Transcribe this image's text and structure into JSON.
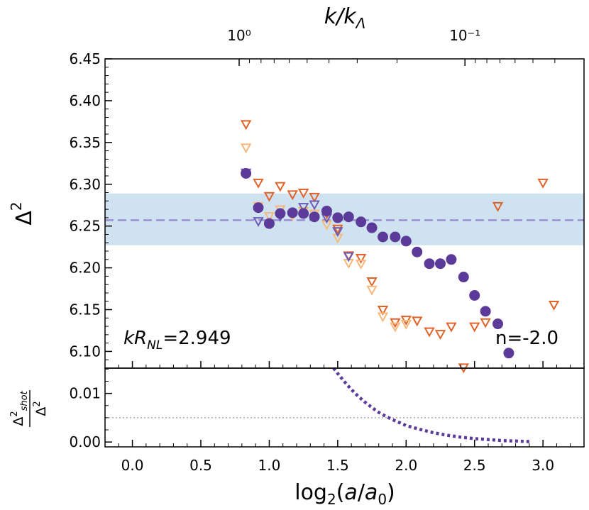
{
  "chart_data": [
    {
      "type": "scatter",
      "title": "",
      "top_axis_label": "k/kΛ",
      "top_ticks": [
        {
          "value": 1,
          "label": "10⁰"
        },
        {
          "value": 0.1,
          "label": "10⁻¹"
        }
      ],
      "ylabel": "Δ²",
      "xlim": [
        -0.2,
        3.3
      ],
      "ylim": [
        6.08,
        6.45
      ],
      "yticks": [
        "6.10",
        "6.15",
        "6.20",
        "6.25",
        "6.30",
        "6.35",
        "6.40",
        "6.45"
      ],
      "band": {
        "low": 6.227,
        "high": 6.289,
        "color": "#cfe2f0"
      },
      "mean_line": {
        "value": 6.257,
        "color": "#9b8fd4"
      },
      "annotations": {
        "left": "kR_NL=2.949",
        "right": "n=-2.0"
      },
      "series": [
        {
          "name": "main",
          "marker": "circle",
          "color": "#5b3a99",
          "points": [
            [
              0.83,
              6.313
            ],
            [
              0.92,
              6.272
            ],
            [
              1.0,
              6.253
            ],
            [
              1.08,
              6.265
            ],
            [
              1.17,
              6.266
            ],
            [
              1.25,
              6.265
            ],
            [
              1.33,
              6.261
            ],
            [
              1.42,
              6.268
            ],
            [
              1.5,
              6.26
            ],
            [
              1.58,
              6.261
            ],
            [
              1.67,
              6.255
            ],
            [
              1.75,
              6.248
            ],
            [
              1.83,
              6.237
            ],
            [
              1.92,
              6.237
            ],
            [
              2.0,
              6.232
            ],
            [
              2.08,
              6.219
            ],
            [
              2.17,
              6.205
            ],
            [
              2.25,
              6.205
            ],
            [
              2.33,
              6.21
            ],
            [
              2.42,
              6.189
            ],
            [
              2.5,
              6.167
            ],
            [
              2.58,
              6.148
            ],
            [
              2.67,
              6.133
            ],
            [
              2.75,
              6.098
            ]
          ]
        },
        {
          "name": "triangles-dark-orange",
          "marker": "triangle-down",
          "color": "#e0632a",
          "points": [
            [
              0.83,
              6.372
            ],
            [
              0.92,
              6.302
            ],
            [
              1.0,
              6.286
            ],
            [
              1.08,
              6.298
            ],
            [
              1.17,
              6.288
            ],
            [
              1.25,
              6.29
            ],
            [
              1.33,
              6.285
            ],
            [
              1.42,
              6.265
            ],
            [
              1.5,
              6.247
            ],
            [
              1.58,
              6.215
            ],
            [
              1.67,
              6.212
            ],
            [
              1.75,
              6.184
            ],
            [
              1.83,
              6.15
            ],
            [
              1.92,
              6.135
            ],
            [
              2.0,
              6.138
            ],
            [
              2.08,
              6.137
            ],
            [
              2.17,
              6.124
            ],
            [
              2.25,
              6.121
            ],
            [
              2.33,
              6.13
            ],
            [
              2.42,
              6.081
            ],
            [
              2.5,
              6.13
            ],
            [
              2.58,
              6.135
            ],
            [
              2.67,
              6.274
            ],
            [
              3.0,
              6.302
            ],
            [
              3.08,
              6.156
            ]
          ]
        },
        {
          "name": "triangles-light-orange",
          "marker": "triangle-down",
          "color": "#f7b87a",
          "points": [
            [
              0.83,
              6.344
            ],
            [
              0.92,
              6.274
            ],
            [
              1.0,
              6.262
            ],
            [
              1.08,
              6.27
            ],
            [
              1.17,
              6.263
            ],
            [
              1.25,
              6.268
            ],
            [
              1.33,
              6.265
            ],
            [
              1.42,
              6.252
            ],
            [
              1.5,
              6.236
            ],
            [
              1.58,
              6.206
            ],
            [
              1.67,
              6.205
            ],
            [
              1.75,
              6.174
            ],
            [
              1.83,
              6.142
            ],
            [
              1.92,
              6.13
            ],
            [
              2.0,
              6.133
            ]
          ]
        },
        {
          "name": "triangles-purple",
          "marker": "triangle-down",
          "color": "#6e5cb5",
          "points": [
            [
              0.83,
              6.314
            ],
            [
              0.92,
              6.256
            ],
            [
              1.08,
              6.262
            ],
            [
              1.25,
              6.273
            ],
            [
              1.33,
              6.276
            ],
            [
              1.42,
              6.26
            ],
            [
              1.5,
              6.244
            ],
            [
              1.58,
              6.214
            ]
          ]
        }
      ]
    },
    {
      "type": "line",
      "ylabel": "Δ²shot / Δ²",
      "xlabel": "log₂(a/a₀)",
      "xlim": [
        -0.2,
        3.3
      ],
      "ylim": [
        -0.001,
        0.0152
      ],
      "xticks": [
        "0.0",
        "0.5",
        "1.0",
        "1.5",
        "2.0",
        "2.5",
        "3.0"
      ],
      "yticks": [
        "0.00",
        "0.01"
      ],
      "reference_line": {
        "value": 0.005,
        "color": "#aaaaaa"
      },
      "series": [
        {
          "name": "shot-noise-ratio",
          "style": "dotted",
          "color": "#5b3a99",
          "points": [
            [
              1.47,
              0.0153
            ],
            [
              1.5,
              0.0141
            ],
            [
              1.55,
              0.0124
            ],
            [
              1.6,
              0.0108
            ],
            [
              1.65,
              0.0094
            ],
            [
              1.7,
              0.0082
            ],
            [
              1.75,
              0.0071
            ],
            [
              1.8,
              0.0061
            ],
            [
              1.85,
              0.0053
            ],
            [
              1.9,
              0.0046
            ],
            [
              1.95,
              0.004
            ],
            [
              2.0,
              0.0034
            ],
            [
              2.1,
              0.0026
            ],
            [
              2.2,
              0.0019
            ],
            [
              2.3,
              0.0014
            ],
            [
              2.4,
              0.001
            ],
            [
              2.5,
              0.0007
            ],
            [
              2.6,
              0.0005
            ],
            [
              2.7,
              0.0003
            ],
            [
              2.8,
              0.0002
            ],
            [
              2.9,
              0.0001
            ]
          ]
        }
      ]
    }
  ]
}
